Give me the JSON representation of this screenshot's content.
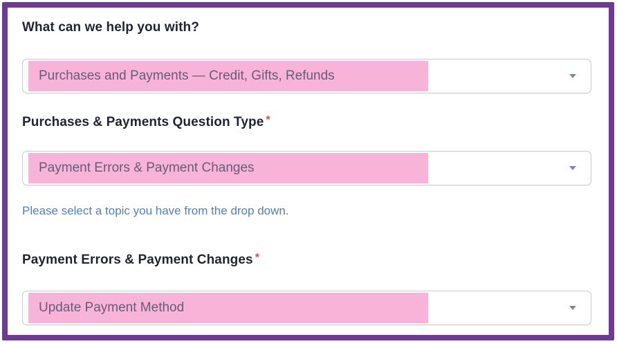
{
  "colors": {
    "frame_border_purple": "#6e3a94",
    "highlight_pink": "#f8b4d8",
    "label_dark": "#1f2430",
    "value_text": "#675c76",
    "helper_blue": "#4e80bf",
    "required_red": "#e8463c"
  },
  "form": {
    "required_marker": "*",
    "fields": [
      {
        "label": "What can we help you with?",
        "required": false,
        "value": "Purchases and Payments — Credit, Gifts, Refunds"
      },
      {
        "label": "Purchases & Payments Question Type",
        "required": true,
        "value": "Payment Errors & Payment Changes",
        "help": "Please select a topic you have from the drop down."
      },
      {
        "label": "Payment Errors & Payment Changes",
        "required": true,
        "value": "Update Payment Method"
      }
    ]
  }
}
